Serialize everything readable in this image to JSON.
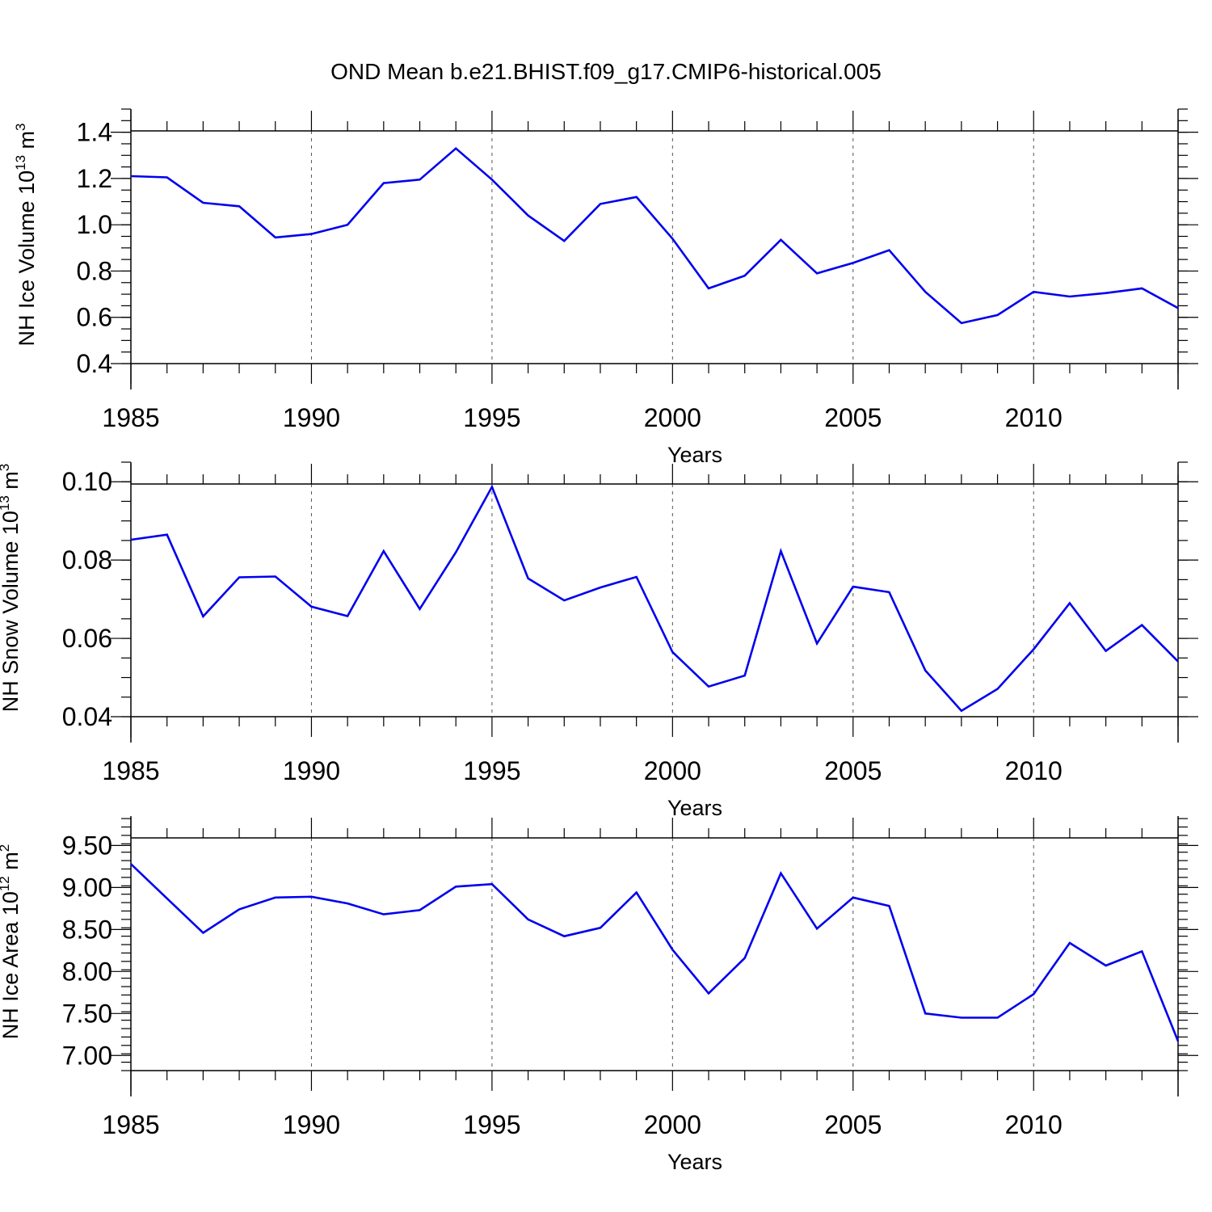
{
  "chart_data": [
    {
      "type": "line",
      "title": "OND Mean b.e21.BHIST.f09_g17.CMIP6-historical.005",
      "ylabel": "NH Ice Volume 10",
      "ylabel_exp": "13",
      "ylabel_unit": " m",
      "ylabel_unit_exp": "3",
      "xlabel": "Years",
      "xlim": [
        1985,
        2014
      ],
      "ylim": [
        0.4,
        1.4
      ],
      "ymax_visual": 1.5,
      "ymin_visual": 0.4,
      "yticks": [
        0.4,
        0.6,
        0.8,
        1.0,
        1.2,
        1.4
      ],
      "ytick_labels": [
        "0.4",
        "0.6",
        "0.8",
        "1.0",
        "1.2",
        "1.4"
      ],
      "yminor_step": 0.05,
      "xticks": [
        1985,
        1990,
        1995,
        2000,
        2005,
        2010
      ],
      "xtick_labels": [
        "1985",
        "1990",
        "1995",
        "2000",
        "2005",
        "2010"
      ],
      "grid": "vertical dashed at major x ticks",
      "x": [
        1985,
        1986,
        1987,
        1988,
        1989,
        1990,
        1991,
        1992,
        1993,
        1994,
        1995,
        1996,
        1997,
        1998,
        1999,
        2000,
        2001,
        2002,
        2003,
        2004,
        2005,
        2006,
        2007,
        2008,
        2009,
        2010,
        2011,
        2012,
        2013,
        2014
      ],
      "values": [
        1.21,
        1.205,
        1.095,
        1.08,
        0.945,
        0.96,
        1.0,
        1.18,
        1.195,
        1.33,
        1.195,
        1.04,
        0.93,
        1.09,
        1.12,
        0.94,
        0.725,
        0.78,
        0.935,
        0.79,
        0.835,
        0.89,
        0.71,
        0.575,
        0.61,
        0.71,
        0.69,
        0.705,
        0.725,
        0.64
      ]
    },
    {
      "type": "line",
      "title": "",
      "ylabel": "NH Snow Volume 10",
      "ylabel_exp": "13",
      "ylabel_unit": " m",
      "ylabel_unit_exp": "3",
      "xlabel": "Years",
      "xlim": [
        1985,
        2014
      ],
      "ylim": [
        0.04,
        0.1
      ],
      "ymax_visual": 0.105,
      "ymin_visual": 0.04,
      "yticks": [
        0.04,
        0.06,
        0.08,
        0.1
      ],
      "ytick_labels": [
        "0.04",
        "0.06",
        "0.08",
        "0.10"
      ],
      "yminor_step": 0.005,
      "xticks": [
        1985,
        1990,
        1995,
        2000,
        2005,
        2010
      ],
      "xtick_labels": [
        "1985",
        "1990",
        "1995",
        "2000",
        "2005",
        "2010"
      ],
      "grid": "vertical dashed at major x ticks",
      "x": [
        1985,
        1986,
        1987,
        1988,
        1989,
        1990,
        1991,
        1992,
        1993,
        1994,
        1995,
        1996,
        1997,
        1998,
        1999,
        2000,
        2001,
        2002,
        2003,
        2004,
        2005,
        2006,
        2007,
        2008,
        2009,
        2010,
        2011,
        2012,
        2013,
        2014
      ],
      "values": [
        0.0852,
        0.0865,
        0.0656,
        0.0756,
        0.0758,
        0.0681,
        0.0657,
        0.0823,
        0.0675,
        0.082,
        0.0987,
        0.0753,
        0.0697,
        0.073,
        0.0757,
        0.0565,
        0.0477,
        0.0505,
        0.0823,
        0.0587,
        0.0732,
        0.0718,
        0.0518,
        0.0415,
        0.0471,
        0.0572,
        0.069,
        0.0568,
        0.0634,
        0.0541
      ]
    },
    {
      "type": "line",
      "title": "",
      "ylabel": "NH Ice Area 10",
      "ylabel_exp": "12",
      "ylabel_unit": " m",
      "ylabel_unit_exp": "2",
      "xlabel": "Years",
      "xlim": [
        1985,
        2014
      ],
      "ylim": [
        6.82,
        9.61
      ],
      "ymax_visual": 9.85,
      "ymin_visual": 6.82,
      "yticks": [
        7.0,
        7.5,
        8.0,
        8.5,
        9.0,
        9.5
      ],
      "ytick_labels": [
        "7.00",
        "7.50",
        "8.00",
        "8.50",
        "9.00",
        "9.50"
      ],
      "yminor_step": 0.1,
      "xticks": [
        1985,
        1990,
        1995,
        2000,
        2005,
        2010
      ],
      "xtick_labels": [
        "1985",
        "1990",
        "1995",
        "2000",
        "2005",
        "2010"
      ],
      "grid": "vertical dashed at major x ticks",
      "x": [
        1985,
        1986,
        1987,
        1988,
        1989,
        1990,
        1991,
        1992,
        1993,
        1994,
        1995,
        1996,
        1997,
        1998,
        1999,
        2000,
        2001,
        2002,
        2003,
        2004,
        2005,
        2006,
        2007,
        2008,
        2009,
        2010,
        2011,
        2012,
        2013,
        2014
      ],
      "values": [
        9.28,
        8.87,
        8.46,
        8.74,
        8.88,
        8.89,
        8.81,
        8.68,
        8.73,
        9.01,
        9.04,
        8.62,
        8.42,
        8.52,
        8.94,
        8.26,
        7.74,
        8.16,
        9.17,
        8.51,
        8.88,
        8.78,
        7.5,
        7.45,
        7.45,
        7.73,
        8.34,
        8.07,
        8.24,
        7.17
      ]
    }
  ],
  "colors": {
    "series": "#0000ee",
    "axis": "#000000",
    "grid": "#555555"
  }
}
